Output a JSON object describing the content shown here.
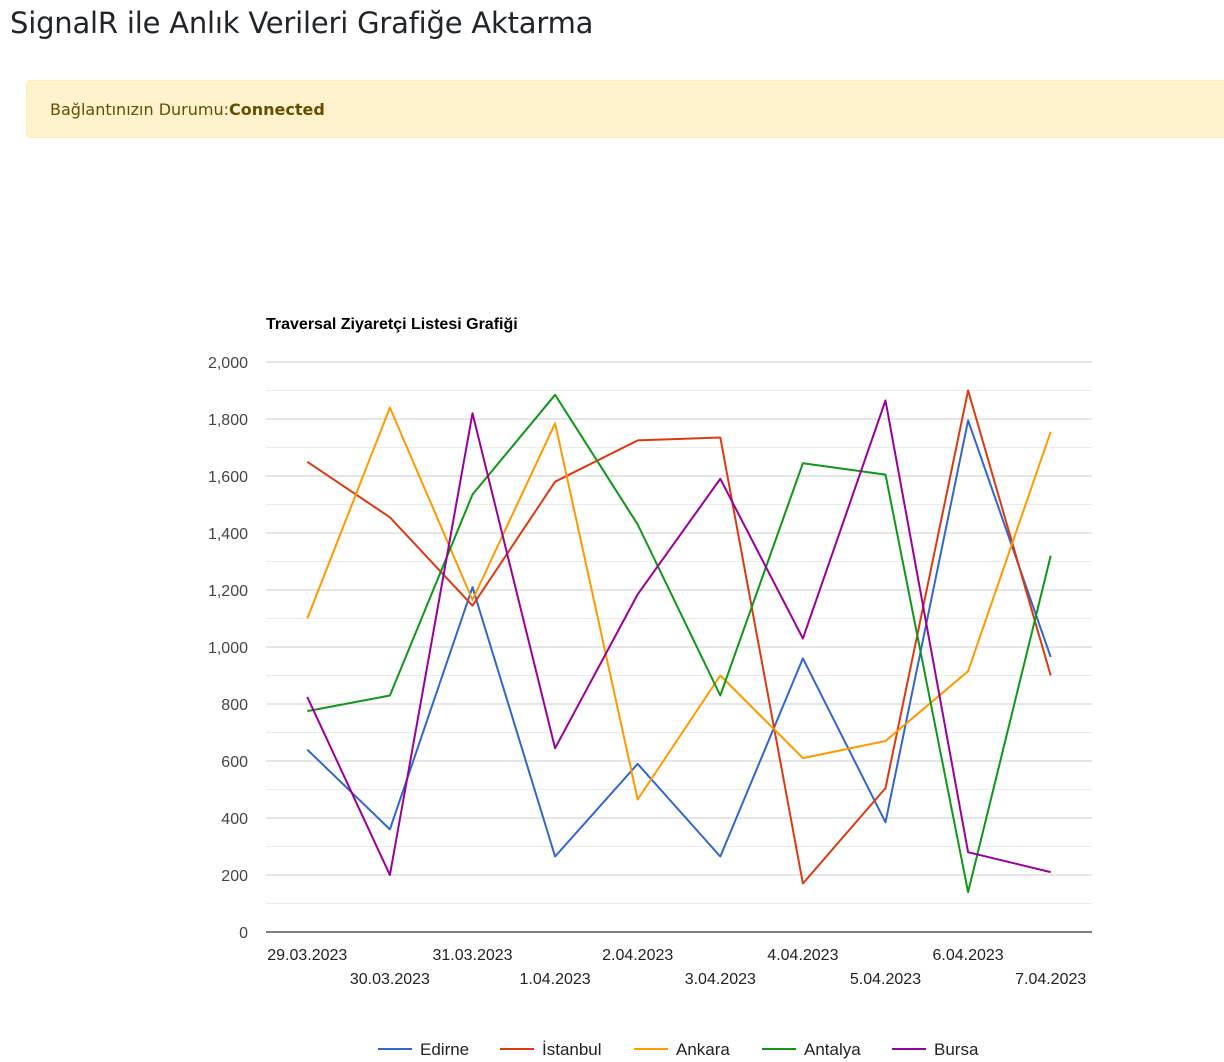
{
  "page": {
    "title": "SignalR ile Anlık Verileri Grafiğe Aktarma",
    "status_label": "Bağlantınızın Durumu:",
    "status_value": "Connected"
  },
  "chart_data": {
    "type": "line",
    "title": "Traversal Ziyaretçi Listesi Grafiği",
    "xlabel": "",
    "ylabel": "",
    "ylim": [
      0,
      2000
    ],
    "yticks": [
      "0",
      "200",
      "400",
      "600",
      "800",
      "1,000",
      "1,200",
      "1,400",
      "1,600",
      "1,800",
      "2,000"
    ],
    "grid": true,
    "legend_position": "bottom",
    "categories": [
      "29.03.2023",
      "30.03.2023",
      "31.03.2023",
      "1.04.2023",
      "2.04.2023",
      "3.04.2023",
      "4.04.2023",
      "5.04.2023",
      "6.04.2023",
      "7.04.2023"
    ],
    "series": [
      {
        "name": "Edirne",
        "color": "#3366cc",
        "values": [
          640,
          360,
          1210,
          265,
          590,
          265,
          960,
          385,
          1795,
          965
        ]
      },
      {
        "name": "İstanbul",
        "color": "#dc3912",
        "values": [
          1650,
          1455,
          1145,
          1580,
          1725,
          1735,
          170,
          505,
          1900,
          900
        ]
      },
      {
        "name": "Ankara",
        "color": "#ff9900",
        "values": [
          1100,
          1840,
          1165,
          1785,
          465,
          900,
          610,
          670,
          915,
          1755
        ]
      },
      {
        "name": "Antalya",
        "color": "#109618",
        "values": [
          775,
          830,
          1535,
          1885,
          1430,
          830,
          1645,
          1605,
          140,
          1320
        ]
      },
      {
        "name": "Bursa",
        "color": "#990099",
        "values": [
          825,
          200,
          1820,
          645,
          1185,
          1590,
          1030,
          1865,
          280,
          210
        ]
      }
    ]
  }
}
